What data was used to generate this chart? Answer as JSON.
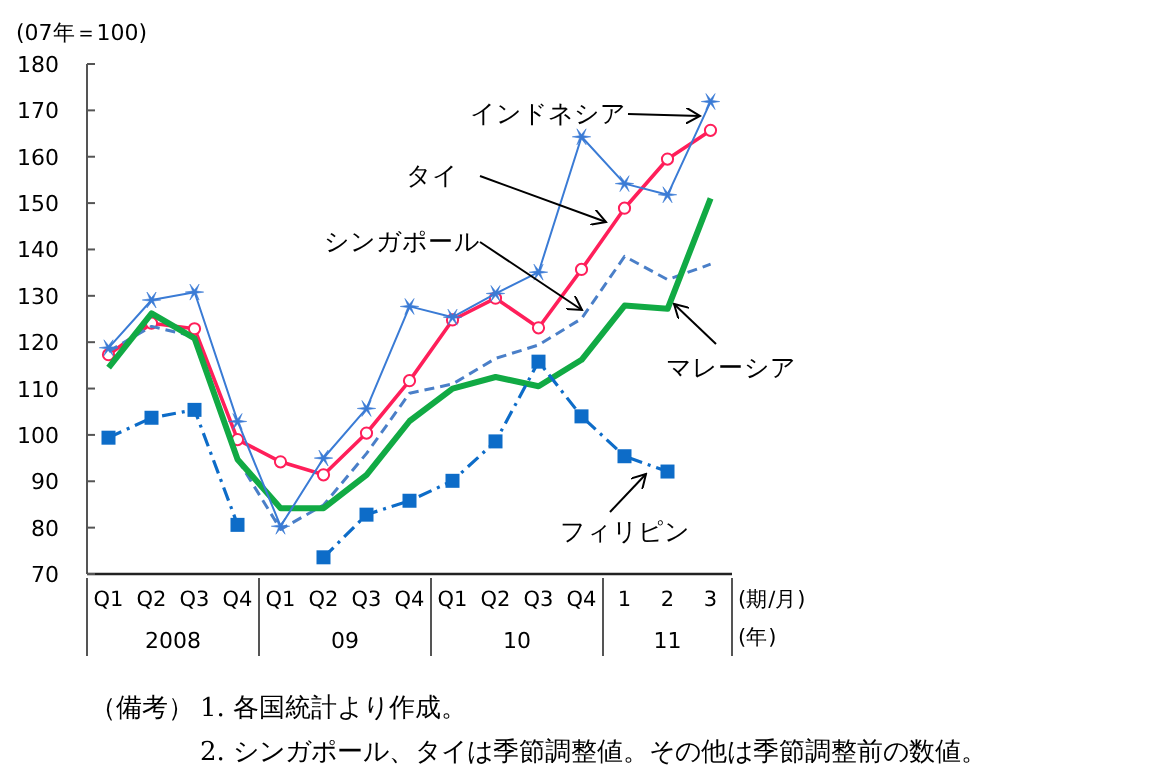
{
  "chart_data": {
    "type": "line",
    "ylabel": "(07年＝100)",
    "xlabel": "(期/月)",
    "categories": [
      "Q1",
      "Q2",
      "Q3",
      "Q4",
      "Q1",
      "Q2",
      "Q3",
      "Q4",
      "Q1",
      "Q2",
      "Q3",
      "Q4",
      "1",
      "2",
      "3"
    ],
    "ylim": [
      70,
      180
    ],
    "yticks": [
      70,
      80,
      90,
      100,
      110,
      120,
      130,
      140,
      150,
      160,
      170,
      180
    ],
    "series": [
      {
        "name": "インドネシア",
        "color": "#3a7bd5",
        "marker": "cross",
        "line_style": "solid",
        "values": [
          118.8,
          129.1,
          130.8,
          102.9,
          80.3,
          95,
          105.7,
          127.7,
          125.4,
          130.5,
          135.1,
          164.3,
          154.2,
          151.8,
          171.9
        ]
      },
      {
        "name": "タイ",
        "color": "#ff1f5a",
        "marker": "circle",
        "line_style": "solid",
        "values": [
          117.3,
          124.1,
          122.9,
          99,
          94.2,
          91.4,
          100.4,
          111.7,
          124.8,
          129.5,
          123.1,
          135.7,
          148.9,
          159.5,
          165.7
        ]
      },
      {
        "name": "シンガポール",
        "color": "#4a7fc8",
        "marker": "none",
        "line_style": "dashed",
        "values": [
          118,
          123.4,
          121.2,
          94.7,
          79.6,
          84.9,
          96,
          109,
          111,
          116.5,
          119.4,
          125.1,
          138.5,
          133.5,
          136.8
        ]
      },
      {
        "name": "マレーシア",
        "color": "#11aa44",
        "marker": "none",
        "line_style": "solid",
        "values": [
          114.5,
          126.2,
          120.8,
          94.7,
          84.2,
          84.2,
          91.4,
          103,
          110,
          112.5,
          110.5,
          116.2,
          127.9,
          127.2,
          151
        ]
      },
      {
        "name": "フィリピン",
        "color": "#0d6cc8",
        "marker": "square",
        "line_style": "dashdot",
        "values": [
          99.4,
          103.7,
          105.4,
          80.6,
          null,
          73.6,
          82.8,
          85.8,
          90.1,
          98.6,
          115.8,
          104,
          95.4,
          92.1,
          null
        ]
      }
    ],
    "annotations": [
      "2008",
      "09",
      "10",
      "11",
      "(年)",
      "（備考）",
      "1. 各国統計より作成。",
      "2. シンガポール、タイは季節調整値。その他は季節調整前の数値。"
    ]
  }
}
